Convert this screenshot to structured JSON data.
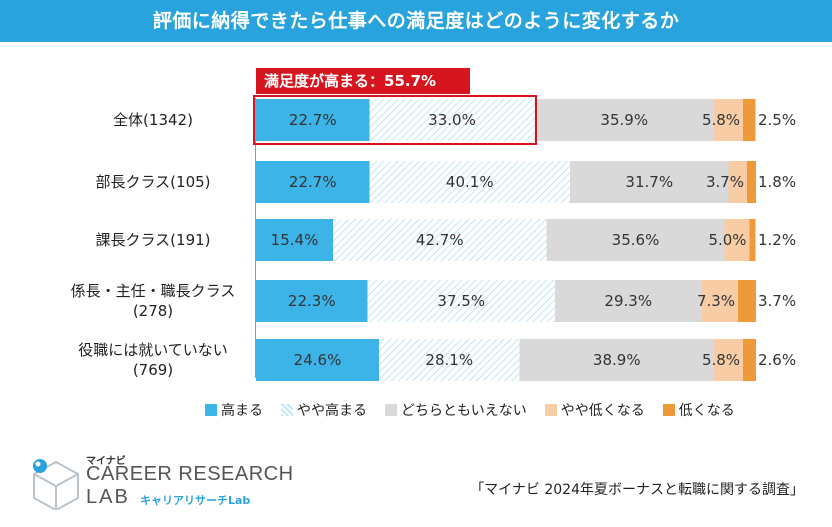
{
  "title": "評価に納得できたら仕事への満足度はどのように変化するか",
  "highlight": "満足度が高まる：55.7%",
  "colors": {
    "banner": "#29a3dd",
    "highlight": "#d7151f",
    "series": [
      "#3db4e8",
      "hatch",
      "#d9d9d9",
      "#f8cda6",
      "#ee9a3a"
    ]
  },
  "chart_data": {
    "type": "bar",
    "orientation": "horizontal-stacked-100",
    "title": "評価に納得できたら仕事への満足度はどのように変化するか",
    "categories": [
      "全体(1342)",
      "部長クラス(105)",
      "課長クラス(191)",
      "係長・主任・職長クラス (278)",
      "役職には就いていない (769)"
    ],
    "category_lines": [
      [
        "全体(1342)"
      ],
      [
        "部長クラス(105)"
      ],
      [
        "課長クラス(191)"
      ],
      [
        "係長・主任・職長クラス",
        "(278)"
      ],
      [
        "役職には就いていない",
        "(769)"
      ]
    ],
    "series": [
      {
        "name": "高まる",
        "values": [
          22.7,
          22.7,
          15.4,
          22.3,
          24.6
        ]
      },
      {
        "name": "やや高まる",
        "values": [
          33.0,
          40.1,
          42.7,
          37.5,
          28.1
        ]
      },
      {
        "name": "どちらともいえない",
        "values": [
          35.9,
          31.7,
          35.6,
          29.3,
          38.9
        ]
      },
      {
        "name": "やや低くなる",
        "values": [
          5.8,
          3.7,
          5.0,
          7.3,
          5.8
        ]
      },
      {
        "name": "低くなる",
        "values": [
          2.5,
          1.8,
          1.2,
          3.7,
          2.6
        ]
      }
    ],
    "data_labels": [
      [
        "22.7%",
        "33.0%",
        "35.9%",
        "5.8%",
        "2.5%"
      ],
      [
        "22.7%",
        "40.1%",
        "31.7%",
        "3.7%",
        "1.8%"
      ],
      [
        "15.4%",
        "42.7%",
        "35.6%",
        "5.0%",
        "1.2%"
      ],
      [
        "22.3%",
        "37.5%",
        "29.3%",
        "7.3%",
        "3.7%"
      ],
      [
        "24.6%",
        "28.1%",
        "38.9%",
        "5.8%",
        "2.6%"
      ]
    ],
    "xlim": [
      0,
      100
    ],
    "legend_position": "bottom"
  },
  "logo": {
    "small": "マイナビ",
    "main": "CAREER RESEARCH",
    "lab": "LAB",
    "sub": "キャリアリサーチLab"
  },
  "source": "「マイナビ 2024年夏ボーナスと転職に関する調査」"
}
